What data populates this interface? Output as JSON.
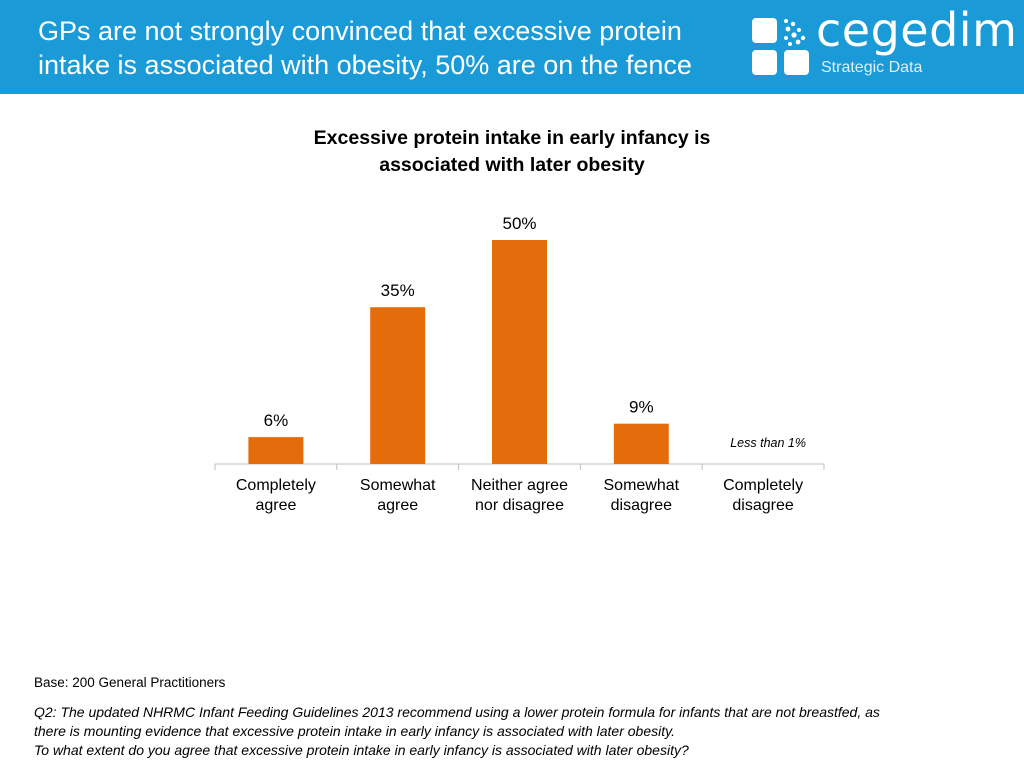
{
  "header": {
    "title_line1": "GPs are not strongly convinced that excessive protein",
    "title_line2": "intake is associated with obesity, 50% are on the fence",
    "logo_name": "cegedim",
    "logo_sub": "Strategic Data",
    "logo_icon": "cegedim-logo-icon",
    "background_color": "#1a9ad6"
  },
  "chart_data": {
    "type": "bar",
    "title": "Excessive protein intake in early infancy is associated with later obesity",
    "title_line1": "Excessive protein intake in early infancy is",
    "title_line2": "associated with later obesity",
    "categories": [
      [
        "Completely",
        "agree"
      ],
      [
        "Somewhat",
        "agree"
      ],
      [
        "Neither agree",
        "nor disagree"
      ],
      [
        "Somewhat",
        "disagree"
      ],
      [
        "Completely",
        "disagree"
      ]
    ],
    "values": [
      6,
      35,
      50,
      9,
      0.5
    ],
    "value_labels": [
      "6%",
      "35%",
      "50%",
      "9%",
      "Less than 1%"
    ],
    "unit": "%",
    "ylim": [
      0,
      50
    ],
    "grid": false,
    "bar_color": "#e46c0a"
  },
  "footer": {
    "base": "Base: 200 General Practitioners",
    "question_line1": "Q2: The updated NHRMC Infant Feeding Guidelines 2013 recommend using a lower protein formula for infants that are not breastfed, as",
    "question_line2": "there is mounting evidence that excessive protein intake in early infancy is associated with later obesity.",
    "question_line3": "To what extent do you agree that excessive protein intake in early infancy is associated with later obesity?"
  }
}
